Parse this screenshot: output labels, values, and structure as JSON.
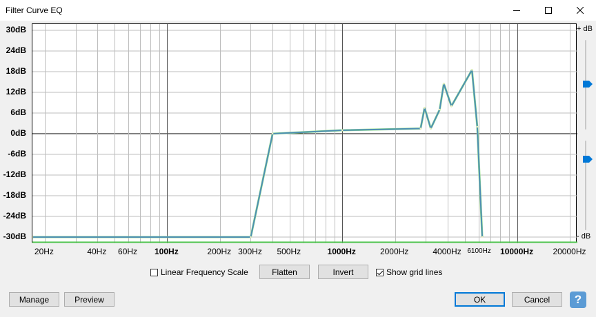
{
  "window": {
    "title": "Filter Curve EQ",
    "controls": [
      "minimize-icon",
      "maximize-icon",
      "close-icon"
    ]
  },
  "db_axis": {
    "ticks": [
      "30dB",
      "24dB",
      "18dB",
      "12dB",
      "6dB",
      "0dB",
      "-6dB",
      "-12dB",
      "-18dB",
      "-24dB",
      "-30dB"
    ]
  },
  "freq_axis": {
    "ticks": [
      {
        "label": "20Hz",
        "bold": false
      },
      {
        "label": "40Hz",
        "bold": false
      },
      {
        "label": "60Hz",
        "bold": false
      },
      {
        "label": "100Hz",
        "bold": true
      },
      {
        "label": "200Hz",
        "bold": false
      },
      {
        "label": "300Hz",
        "bold": false
      },
      {
        "label": "500Hz",
        "bold": false
      },
      {
        "label": "1000Hz",
        "bold": true
      },
      {
        "label": "2000Hz",
        "bold": false
      },
      {
        "label": "4000Hz",
        "bold": false
      },
      {
        "label": "6100Hz",
        "bold": false
      },
      {
        "label": "10000Hz",
        "bold": true
      },
      {
        "label": "20000Hz",
        "bold": false
      }
    ]
  },
  "chart_data": {
    "type": "line",
    "x_scale": "log",
    "xlim": [
      17,
      22000
    ],
    "ylim": [
      -30,
      30
    ],
    "grid": true,
    "series": [
      {
        "color": "#4e8fb3",
        "x": [
          17,
          300,
          400,
          1000,
          2800,
          2950,
          3200,
          3600,
          3800,
          4200,
          5500,
          5900,
          6300
        ],
        "y": [
          -30,
          -30,
          0,
          1,
          1.5,
          7.5,
          1.5,
          7,
          14.5,
          8,
          18.5,
          2,
          -30
        ]
      }
    ],
    "baseline_color": "#4cc34c"
  },
  "sliders": {
    "top_label": "+ dB",
    "bottom_label": "- dB"
  },
  "options": {
    "linear_scale_label": "Linear Frequency Scale",
    "linear_scale_checked": false,
    "show_grid_label": "Show grid lines",
    "show_grid_checked": true
  },
  "buttons": {
    "flatten": "Flatten",
    "invert": "Invert",
    "manage": "Manage",
    "preview": "Preview",
    "ok": "OK",
    "cancel": "Cancel",
    "help": "?"
  }
}
